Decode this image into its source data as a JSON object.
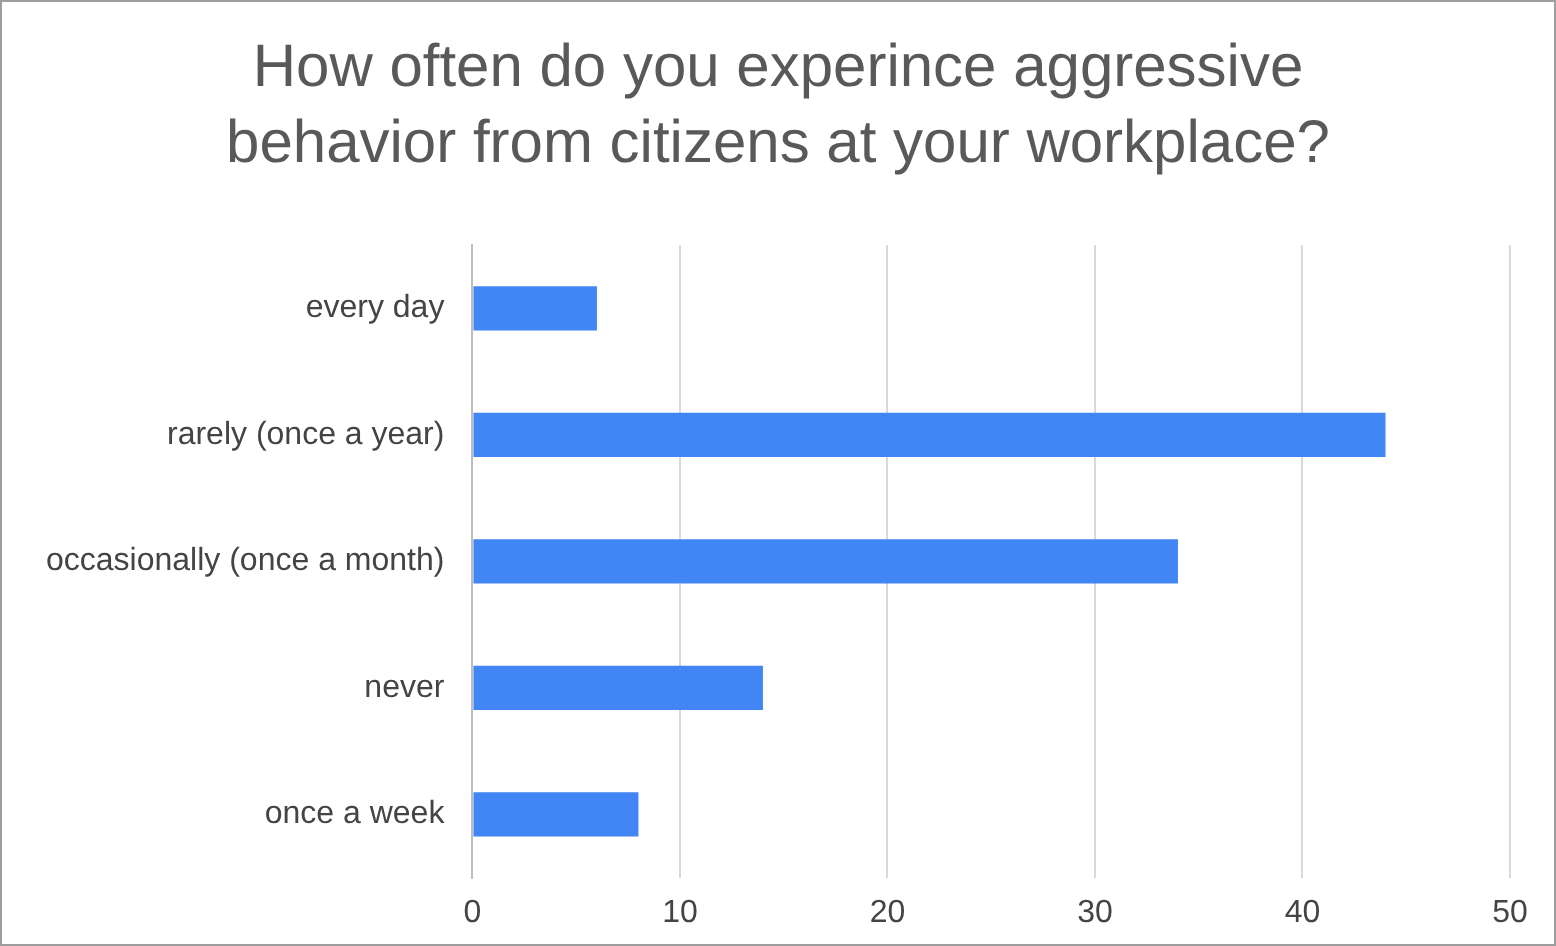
{
  "chart_data": {
    "type": "bar",
    "orientation": "horizontal",
    "title": "How often do you experince aggressive behavior from citizens at your workplace?",
    "categories": [
      "every day",
      "rarely (once a year)",
      "occasionally (once a month)",
      "never",
      "once a week"
    ],
    "values": [
      6,
      44,
      34,
      14,
      8
    ],
    "color": "#4285f4",
    "xlim": [
      0,
      50
    ],
    "xticks": [
      0,
      10,
      20,
      30,
      40,
      50
    ],
    "grid": "x",
    "legend": false
  }
}
